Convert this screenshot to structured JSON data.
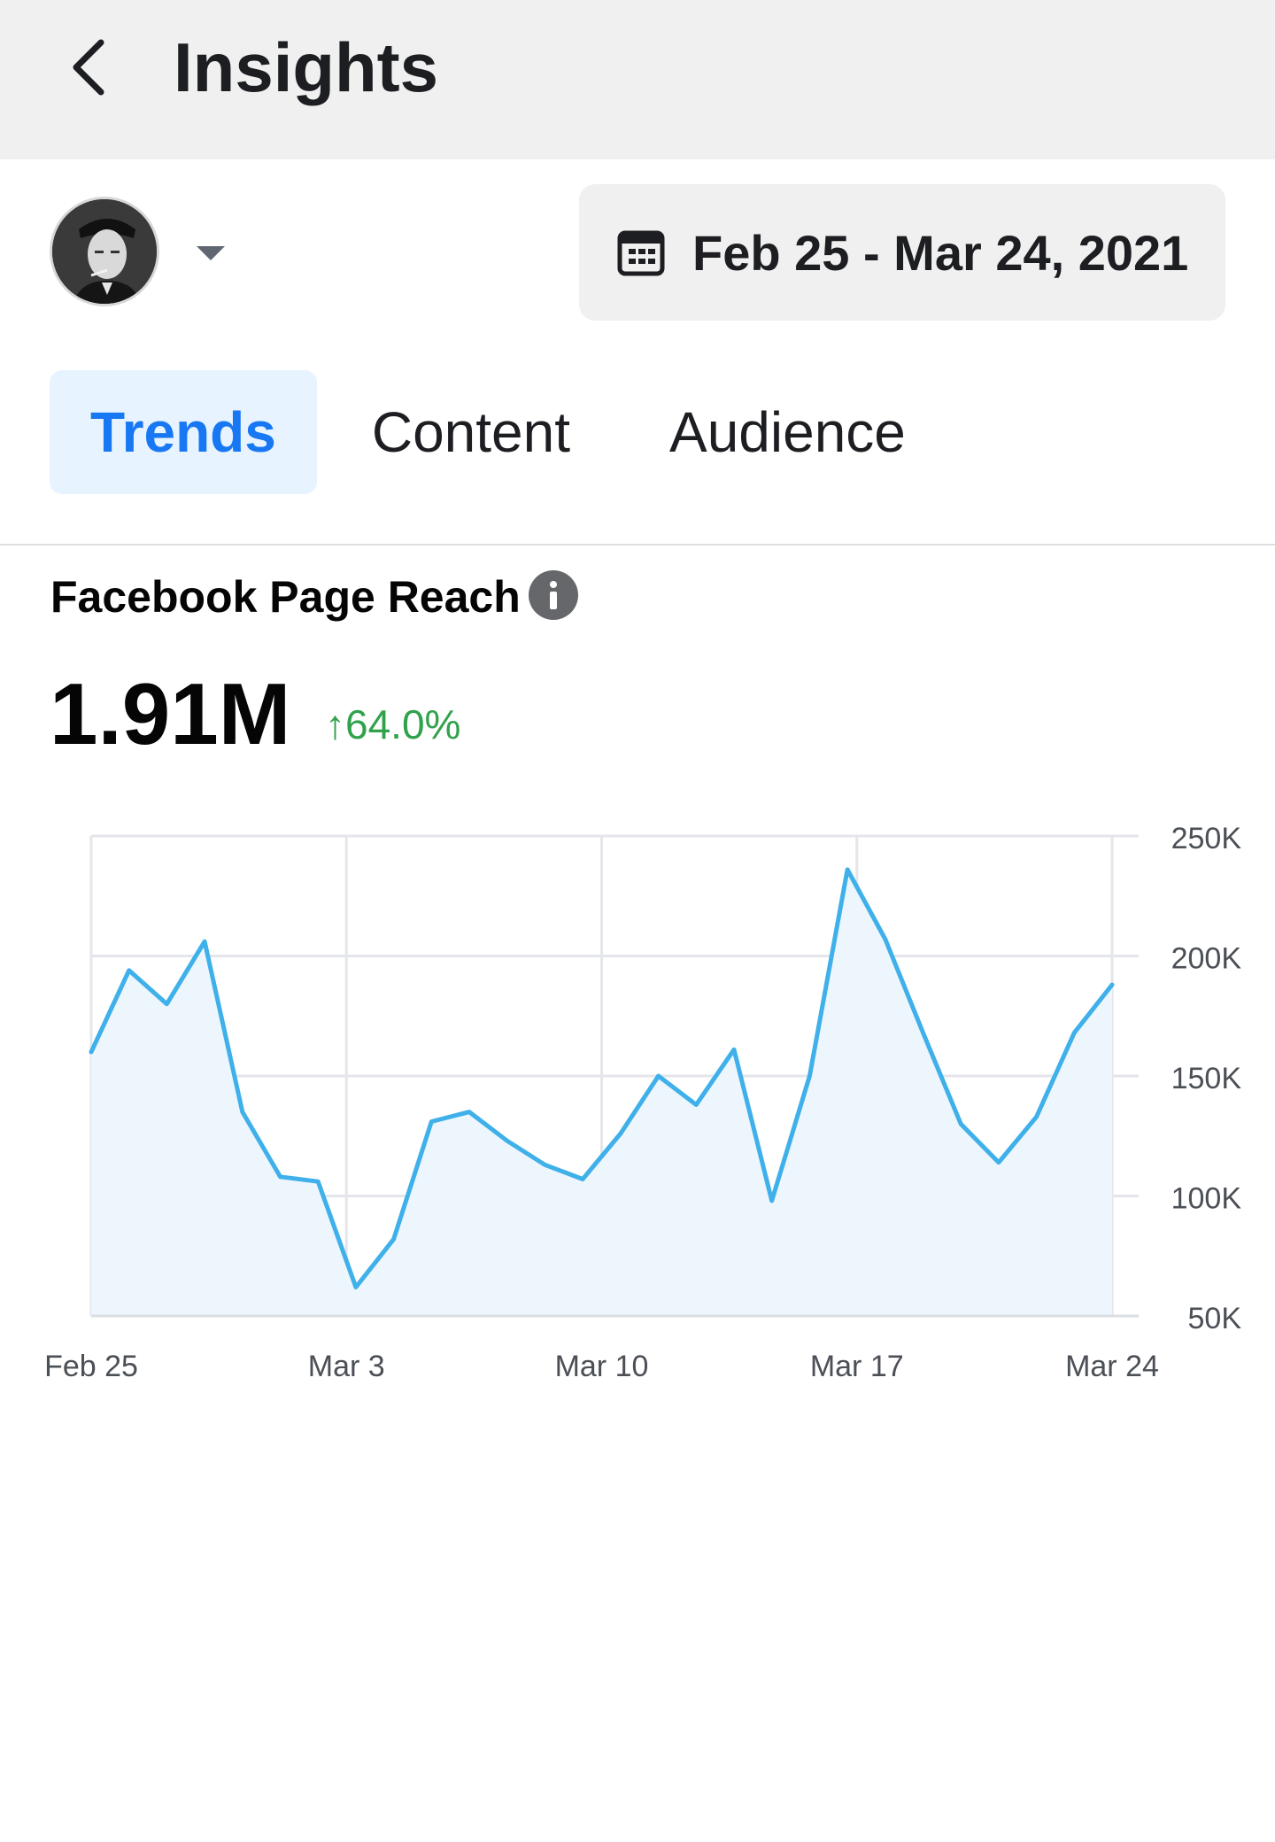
{
  "header": {
    "title": "Insights",
    "back_icon": "chevron-left-icon"
  },
  "account": {
    "avatar_icon": "profile-avatar",
    "caret_icon": "caret-down-icon"
  },
  "date_range": {
    "icon": "calendar-icon",
    "label": "Feb 25 - Mar 24, 2021"
  },
  "tabs": [
    {
      "label": "Trends",
      "active": true
    },
    {
      "label": "Content",
      "active": false
    },
    {
      "label": "Audience",
      "active": false
    }
  ],
  "metric": {
    "title": "Facebook Page Reach",
    "info_icon": "info-icon",
    "value": "1.91M",
    "change": "↑64.0%"
  },
  "colors": {
    "accent": "#1877f2",
    "tab_active_bg": "#e7f3ff",
    "positive": "#31a24c",
    "line": "#3fb0ea",
    "area": "#eef6fd"
  },
  "chart_data": {
    "type": "area",
    "x_tick_labels": [
      "Feb 25",
      "Mar 3",
      "Mar 10",
      "Mar 17",
      "Mar 24"
    ],
    "y_tick_labels": [
      "250K",
      "200K",
      "150K",
      "100K",
      "50K"
    ],
    "ylim": [
      50000,
      250000
    ],
    "grid": true,
    "x": [
      "Feb 25",
      "Feb 26",
      "Feb 27",
      "Feb 28",
      "Mar 1",
      "Mar 2",
      "Mar 3",
      "Mar 4",
      "Mar 5",
      "Mar 6",
      "Mar 7",
      "Mar 8",
      "Mar 9",
      "Mar 10",
      "Mar 11",
      "Mar 12",
      "Mar 13",
      "Mar 14",
      "Mar 15",
      "Mar 16",
      "Mar 17",
      "Mar 18",
      "Mar 19",
      "Mar 20",
      "Mar 21",
      "Mar 22",
      "Mar 23",
      "Mar 24"
    ],
    "series": [
      {
        "values": [
          160000,
          194000,
          180000,
          206000,
          135000,
          108000,
          106000,
          62000,
          82000,
          131000,
          135000,
          123000,
          113000,
          107000,
          126000,
          150000,
          138000,
          161000,
          98000,
          150000,
          236000,
          207000,
          168000,
          130000,
          114000,
          133000,
          168000,
          188000
        ]
      }
    ]
  }
}
